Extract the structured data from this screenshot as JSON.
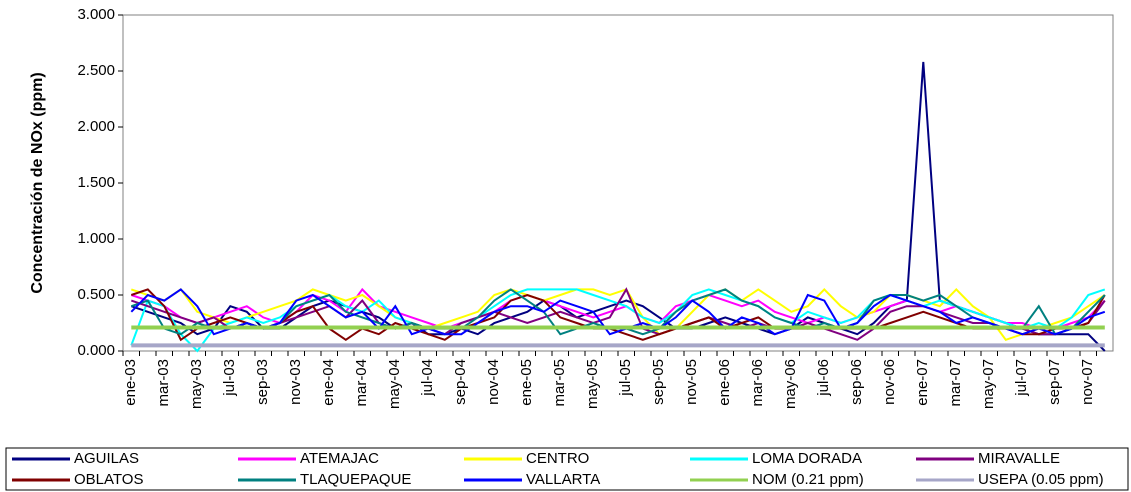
{
  "chart_data": {
    "type": "line",
    "y_label": "Concentración de NOx (ppm)",
    "categories": [
      "ene-03",
      null,
      "mar-03",
      null,
      "may-03",
      null,
      "jul-03",
      null,
      "sep-03",
      null,
      "nov-03",
      null,
      "ene-04",
      null,
      "mar-04",
      null,
      "may-04",
      null,
      "jul-04",
      null,
      "sep-04",
      null,
      "nov-04",
      null,
      "ene-05",
      null,
      "mar-05",
      null,
      "may-05",
      null,
      "jul-05",
      null,
      "sep-05",
      null,
      "nov-05",
      null,
      "ene-06",
      null,
      "mar-06",
      null,
      "may-06",
      null,
      "jul-06",
      null,
      "sep-06",
      null,
      "nov-06",
      null,
      "ene-07",
      null,
      "mar-07",
      null,
      "may-07",
      null,
      "jul-07",
      null,
      "sep-07",
      null,
      "nov-07",
      null
    ],
    "ylim": [
      0,
      3
    ],
    "yticks": [
      {
        "value": 0,
        "label": "0.000"
      },
      {
        "value": 0.5,
        "label": "0.500"
      },
      {
        "value": 1,
        "label": "1.000"
      },
      {
        "value": 1.5,
        "label": "1.500"
      },
      {
        "value": 2,
        "label": "2.000"
      },
      {
        "value": 2.5,
        "label": "2.500"
      },
      {
        "value": 3,
        "label": "3.000"
      }
    ],
    "series": [
      {
        "name": "AGUILAS",
        "color": "#000080",
        "values": [
          0.4,
          0.35,
          0.3,
          0.25,
          0.15,
          0.2,
          0.4,
          0.35,
          0.2,
          0.2,
          0.3,
          0.4,
          0.45,
          0.4,
          0.35,
          0.3,
          0.2,
          0.25,
          0.15,
          0.15,
          0.2,
          0.15,
          0.25,
          0.3,
          0.35,
          0.45,
          0.4,
          0.3,
          0.35,
          0.4,
          0.45,
          0.4,
          0.3,
          0.2,
          0.2,
          0.25,
          0.3,
          0.25,
          0.2,
          0.15,
          0.2,
          0.3,
          0.25,
          0.2,
          0.15,
          0.25,
          0.4,
          0.45,
          2.58,
          0.45,
          0.4,
          0.35,
          0.3,
          0.25,
          0.2,
          0.15,
          0.15,
          0.15,
          0.15,
          0.0
        ]
      },
      {
        "name": "ATEMAJAC",
        "color": "#ff00ff",
        "values": [
          0.5,
          0.45,
          0.4,
          0.3,
          0.25,
          0.3,
          0.35,
          0.4,
          0.3,
          0.25,
          0.35,
          0.5,
          0.45,
          0.35,
          0.55,
          0.4,
          0.35,
          0.3,
          0.25,
          0.2,
          0.25,
          0.3,
          0.35,
          0.45,
          0.5,
          0.45,
          0.4,
          0.35,
          0.3,
          0.35,
          0.4,
          0.3,
          0.25,
          0.4,
          0.45,
          0.5,
          0.45,
          0.4,
          0.45,
          0.35,
          0.3,
          0.25,
          0.3,
          0.25,
          0.3,
          0.35,
          0.4,
          0.45,
          0.4,
          0.35,
          0.4,
          0.35,
          0.3,
          0.25,
          0.25,
          0.2,
          0.2,
          0.25,
          0.3,
          0.45
        ]
      },
      {
        "name": "CENTRO",
        "color": "#ffff00",
        "values": [
          0.55,
          0.5,
          0.45,
          0.55,
          0.35,
          0.3,
          0.25,
          0.3,
          0.35,
          0.4,
          0.45,
          0.55,
          0.5,
          0.45,
          0.5,
          0.4,
          0.3,
          0.25,
          0.2,
          0.25,
          0.3,
          0.35,
          0.5,
          0.55,
          0.5,
          0.45,
          0.5,
          0.55,
          0.55,
          0.5,
          0.55,
          0.3,
          0.15,
          0.2,
          0.35,
          0.5,
          0.55,
          0.45,
          0.55,
          0.45,
          0.35,
          0.4,
          0.55,
          0.4,
          0.3,
          0.35,
          0.5,
          0.5,
          0.45,
          0.4,
          0.55,
          0.4,
          0.3,
          0.1,
          0.15,
          0.2,
          0.25,
          0.3,
          0.4,
          0.5
        ]
      },
      {
        "name": "LOMA DORADA",
        "color": "#00ffff",
        "values": [
          0.05,
          0.45,
          0.4,
          0.15,
          0.0,
          0.2,
          0.25,
          0.3,
          0.25,
          0.3,
          0.4,
          0.45,
          0.5,
          0.4,
          0.35,
          0.45,
          0.3,
          0.25,
          0.2,
          0.15,
          0.25,
          0.3,
          0.4,
          0.5,
          0.55,
          0.55,
          0.55,
          0.55,
          0.5,
          0.45,
          0.4,
          0.3,
          0.25,
          0.35,
          0.5,
          0.55,
          0.5,
          0.45,
          0.4,
          0.3,
          0.25,
          0.35,
          0.3,
          0.25,
          0.3,
          0.45,
          0.5,
          0.45,
          0.4,
          0.45,
          0.4,
          0.35,
          0.3,
          0.25,
          0.2,
          0.25,
          0.2,
          0.3,
          0.5,
          0.55
        ]
      },
      {
        "name": "MIRAVALLE",
        "color": "#800080",
        "values": [
          0.45,
          0.4,
          0.35,
          0.3,
          0.25,
          0.3,
          0.2,
          0.25,
          0.2,
          0.25,
          0.3,
          0.35,
          0.4,
          0.3,
          0.45,
          0.25,
          0.2,
          0.25,
          0.2,
          0.15,
          0.25,
          0.3,
          0.35,
          0.3,
          0.25,
          0.3,
          0.35,
          0.3,
          0.25,
          0.3,
          0.55,
          0.2,
          0.15,
          0.2,
          0.25,
          0.3,
          0.25,
          0.2,
          0.25,
          0.2,
          0.2,
          0.25,
          0.2,
          0.15,
          0.1,
          0.2,
          0.35,
          0.4,
          0.4,
          0.35,
          0.3,
          0.25,
          0.25,
          0.2,
          0.2,
          0.15,
          0.15,
          0.2,
          0.25,
          0.45
        ]
      },
      {
        "name": "OBLATOS",
        "color": "#800000",
        "values": [
          0.5,
          0.55,
          0.4,
          0.1,
          0.2,
          0.25,
          0.3,
          0.25,
          0.2,
          0.25,
          0.35,
          0.4,
          0.2,
          0.1,
          0.2,
          0.15,
          0.25,
          0.2,
          0.15,
          0.1,
          0.2,
          0.25,
          0.3,
          0.45,
          0.5,
          0.45,
          0.3,
          0.25,
          0.2,
          0.2,
          0.15,
          0.1,
          0.15,
          0.2,
          0.25,
          0.3,
          0.2,
          0.25,
          0.3,
          0.2,
          0.2,
          0.2,
          0.2,
          0.2,
          0.2,
          0.2,
          0.25,
          0.3,
          0.35,
          0.3,
          0.25,
          0.2,
          0.2,
          0.2,
          0.15,
          0.15,
          0.2,
          0.2,
          0.25,
          0.5
        ]
      },
      {
        "name": "TLAQUEPAQUE",
        "color": "#008080",
        "values": [
          0.4,
          0.45,
          0.2,
          0.15,
          0.25,
          0.2,
          0.2,
          0.25,
          0.2,
          0.25,
          0.4,
          0.45,
          0.5,
          0.35,
          0.3,
          0.25,
          0.2,
          0.25,
          0.2,
          0.2,
          0.2,
          0.3,
          0.45,
          0.55,
          0.45,
          0.35,
          0.15,
          0.2,
          0.25,
          0.2,
          0.2,
          0.15,
          0.2,
          0.35,
          0.45,
          0.5,
          0.55,
          0.45,
          0.4,
          0.3,
          0.25,
          0.2,
          0.25,
          0.2,
          0.25,
          0.45,
          0.5,
          0.5,
          0.45,
          0.5,
          0.4,
          0.3,
          0.25,
          0.2,
          0.2,
          0.4,
          0.15,
          0.2,
          0.35,
          0.5
        ]
      },
      {
        "name": "VALLARTA",
        "color": "#0000ff",
        "values": [
          0.35,
          0.5,
          0.45,
          0.55,
          0.4,
          0.15,
          0.2,
          0.25,
          0.2,
          0.25,
          0.45,
          0.5,
          0.4,
          0.3,
          0.35,
          0.2,
          0.4,
          0.15,
          0.2,
          0.15,
          0.15,
          0.25,
          0.35,
          0.4,
          0.4,
          0.35,
          0.45,
          0.4,
          0.35,
          0.15,
          0.2,
          0.25,
          0.2,
          0.3,
          0.45,
          0.35,
          0.2,
          0.3,
          0.25,
          0.15,
          0.2,
          0.5,
          0.45,
          0.2,
          0.25,
          0.4,
          0.5,
          0.45,
          0.4,
          0.35,
          0.25,
          0.3,
          0.25,
          0.2,
          0.15,
          0.2,
          0.15,
          0.2,
          0.3,
          0.35
        ]
      },
      {
        "name": "NOM (0.21 ppm)",
        "color": "#92d050",
        "values": [
          0.21,
          0.21,
          0.21,
          0.21,
          0.21,
          0.21,
          0.21,
          0.21,
          0.21,
          0.21,
          0.21,
          0.21,
          0.21,
          0.21,
          0.21,
          0.21,
          0.21,
          0.21,
          0.21,
          0.21,
          0.21,
          0.21,
          0.21,
          0.21,
          0.21,
          0.21,
          0.21,
          0.21,
          0.21,
          0.21,
          0.21,
          0.21,
          0.21,
          0.21,
          0.21,
          0.21,
          0.21,
          0.21,
          0.21,
          0.21,
          0.21,
          0.21,
          0.21,
          0.21,
          0.21,
          0.21,
          0.21,
          0.21,
          0.21,
          0.21,
          0.21,
          0.21,
          0.21,
          0.21,
          0.21,
          0.21,
          0.21,
          0.21,
          0.21,
          0.21
        ]
      },
      {
        "name": "USEPA (0.05 ppm)",
        "color": "#a6a6c8",
        "values": [
          0.05,
          0.05,
          0.05,
          0.05,
          0.05,
          0.05,
          0.05,
          0.05,
          0.05,
          0.05,
          0.05,
          0.05,
          0.05,
          0.05,
          0.05,
          0.05,
          0.05,
          0.05,
          0.05,
          0.05,
          0.05,
          0.05,
          0.05,
          0.05,
          0.05,
          0.05,
          0.05,
          0.05,
          0.05,
          0.05,
          0.05,
          0.05,
          0.05,
          0.05,
          0.05,
          0.05,
          0.05,
          0.05,
          0.05,
          0.05,
          0.05,
          0.05,
          0.05,
          0.05,
          0.05,
          0.05,
          0.05,
          0.05,
          0.05,
          0.05,
          0.05,
          0.05,
          0.05,
          0.05,
          0.05,
          0.05,
          0.05,
          0.05,
          0.05,
          0.05
        ]
      }
    ]
  }
}
